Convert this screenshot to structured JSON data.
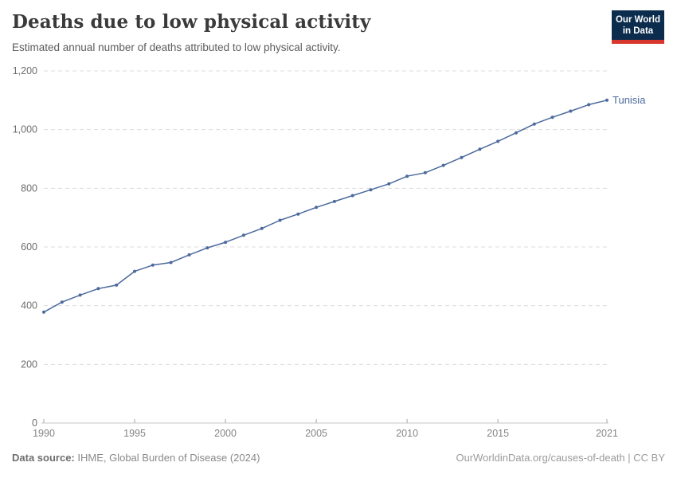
{
  "header": {
    "title": "Deaths due to low physical activity",
    "subtitle": "Estimated annual number of deaths attributed to low physical activity.",
    "logo": {
      "line1": "Our World",
      "line2": "in Data"
    }
  },
  "footer": {
    "source_label": "Data source:",
    "source_text": " IHME, Global Burden of Disease (2024)",
    "link_text": "OurWorldinData.org/causes-of-death | CC BY"
  },
  "colors": {
    "line": "#4c6a9c",
    "entity_label": "#4c6a9c",
    "grid": "#dcdcdc",
    "axis": "#c4c4c4",
    "tick": "#a8a8a8",
    "y_label": "#6d6d6d",
    "x_label": "#858585",
    "title_text": "#3a3a3a",
    "logo_navy": "#0c2c4e",
    "logo_red": "#d8372e"
  },
  "chart_data": {
    "type": "line",
    "title": "Deaths due to low physical activity",
    "subtitle": "Estimated annual number of deaths attributed to low physical activity.",
    "xlabel": "",
    "ylabel": "",
    "xlim": [
      1990,
      2021
    ],
    "ylim": [
      0,
      1200
    ],
    "x_ticks": [
      1990,
      1995,
      2000,
      2005,
      2010,
      2015,
      2021
    ],
    "y_ticks": [
      0,
      200,
      400,
      600,
      800,
      1000,
      1200
    ],
    "grid": "horizontal-dashed",
    "legend_position": "end-of-line",
    "end_label": "Tunisia",
    "series": [
      {
        "name": "Tunisia",
        "color": "#4c6a9c",
        "x": [
          1990,
          1991,
          1992,
          1993,
          1994,
          1995,
          1996,
          1997,
          1998,
          1999,
          2000,
          2001,
          2002,
          2003,
          2004,
          2005,
          2006,
          2007,
          2008,
          2009,
          2010,
          2011,
          2012,
          2013,
          2014,
          2015,
          2016,
          2017,
          2018,
          2019,
          2020,
          2021
        ],
        "values": [
          378,
          412,
          436,
          458,
          470,
          517,
          538,
          547,
          573,
          597,
          616,
          640,
          663,
          691,
          712,
          735,
          755,
          775,
          795,
          815,
          841,
          853,
          878,
          905,
          933,
          960,
          989,
          1019,
          1042,
          1063,
          1085,
          1100
        ]
      }
    ]
  }
}
